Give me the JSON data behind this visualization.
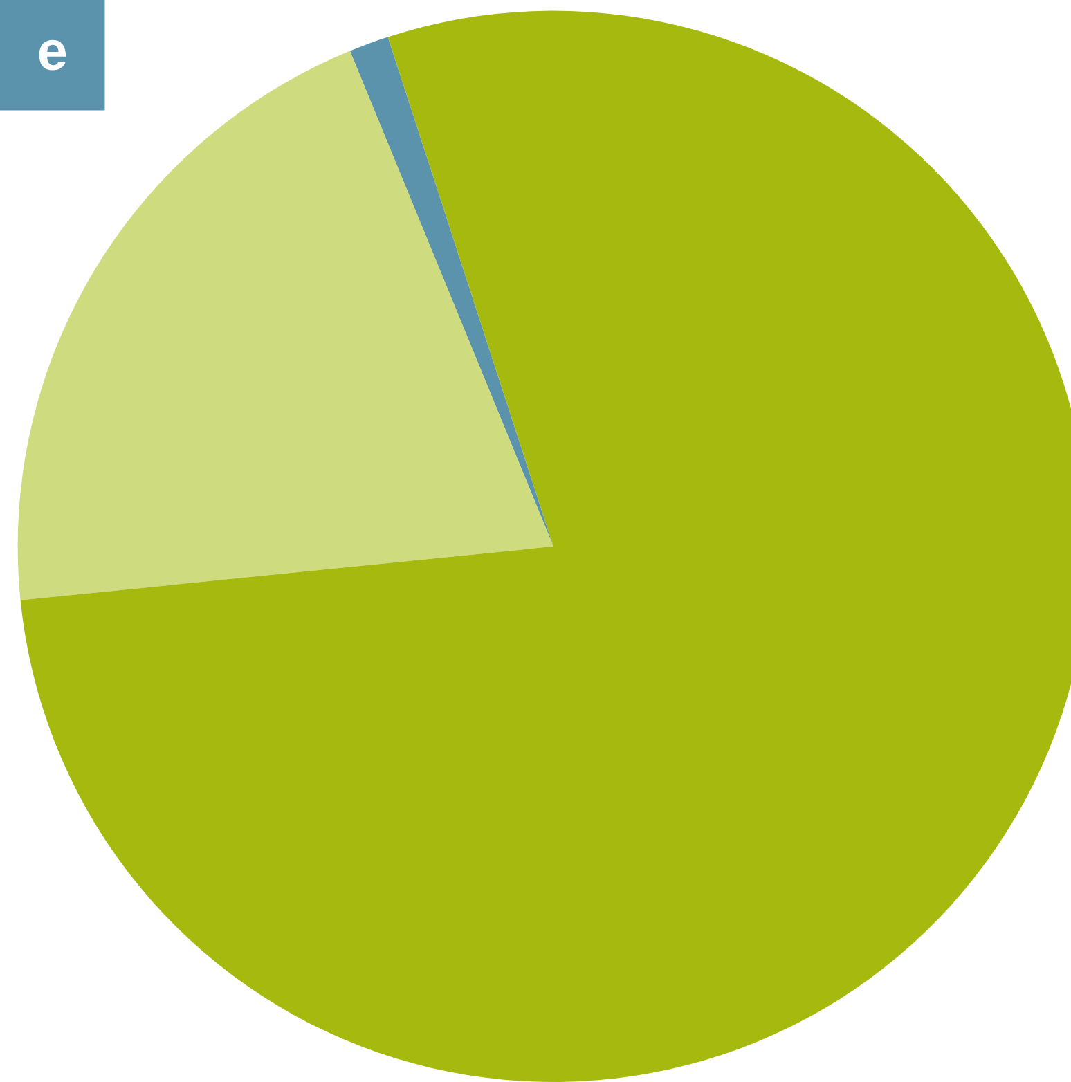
{
  "chart_data": {
    "type": "pie",
    "categories": [
      null,
      null,
      null
    ],
    "values": [
      1.2,
      20.4,
      78.4
    ],
    "colors": [
      "#5b93ad",
      "#cfdb7f",
      "#a5b90e"
    ],
    "annotations": [
      "e"
    ]
  }
}
